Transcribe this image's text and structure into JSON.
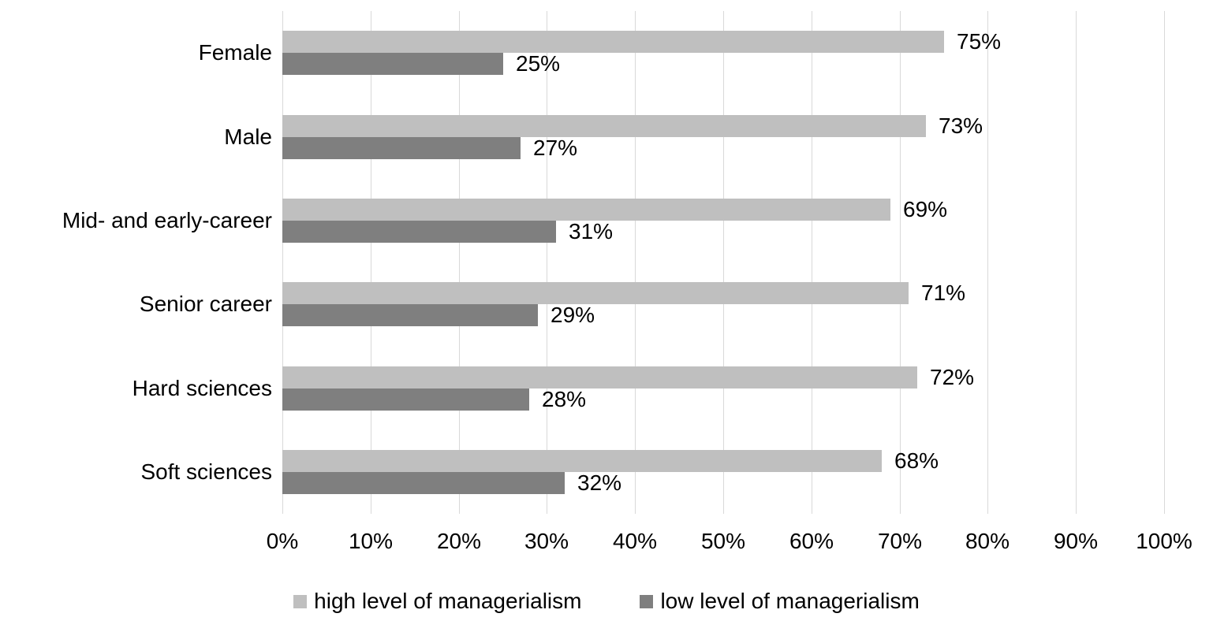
{
  "chart_data": {
    "type": "bar",
    "orientation": "horizontal",
    "title": "",
    "xlabel": "",
    "ylabel": "",
    "categories": [
      "Female",
      "Male",
      "Mid- and early-career",
      "Senior career",
      "Hard sciences",
      "Soft sciences"
    ],
    "series": [
      {
        "name": "high level of managerialism",
        "color": "#bfbfbf",
        "values": [
          75,
          73,
          69,
          71,
          72,
          68
        ],
        "data_labels": [
          "75%",
          "73%",
          "69%",
          "71%",
          "72%",
          "68%"
        ]
      },
      {
        "name": "low level of managerialism",
        "color": "#7f7f7f",
        "values": [
          25,
          27,
          31,
          29,
          28,
          32
        ],
        "data_labels": [
          "25%",
          "27%",
          "31%",
          "29%",
          "28%",
          "32%"
        ]
      }
    ],
    "xlim": [
      0,
      100
    ],
    "x_tick_labels": [
      "0%",
      "10%",
      "20%",
      "30%",
      "40%",
      "50%",
      "60%",
      "70%",
      "80%",
      "90%",
      "100%"
    ],
    "grid": "vertical",
    "gridline_color": "#d9d9d9",
    "legend_position": "bottom",
    "text_color": "#000000",
    "background_color": "#ffffff"
  }
}
